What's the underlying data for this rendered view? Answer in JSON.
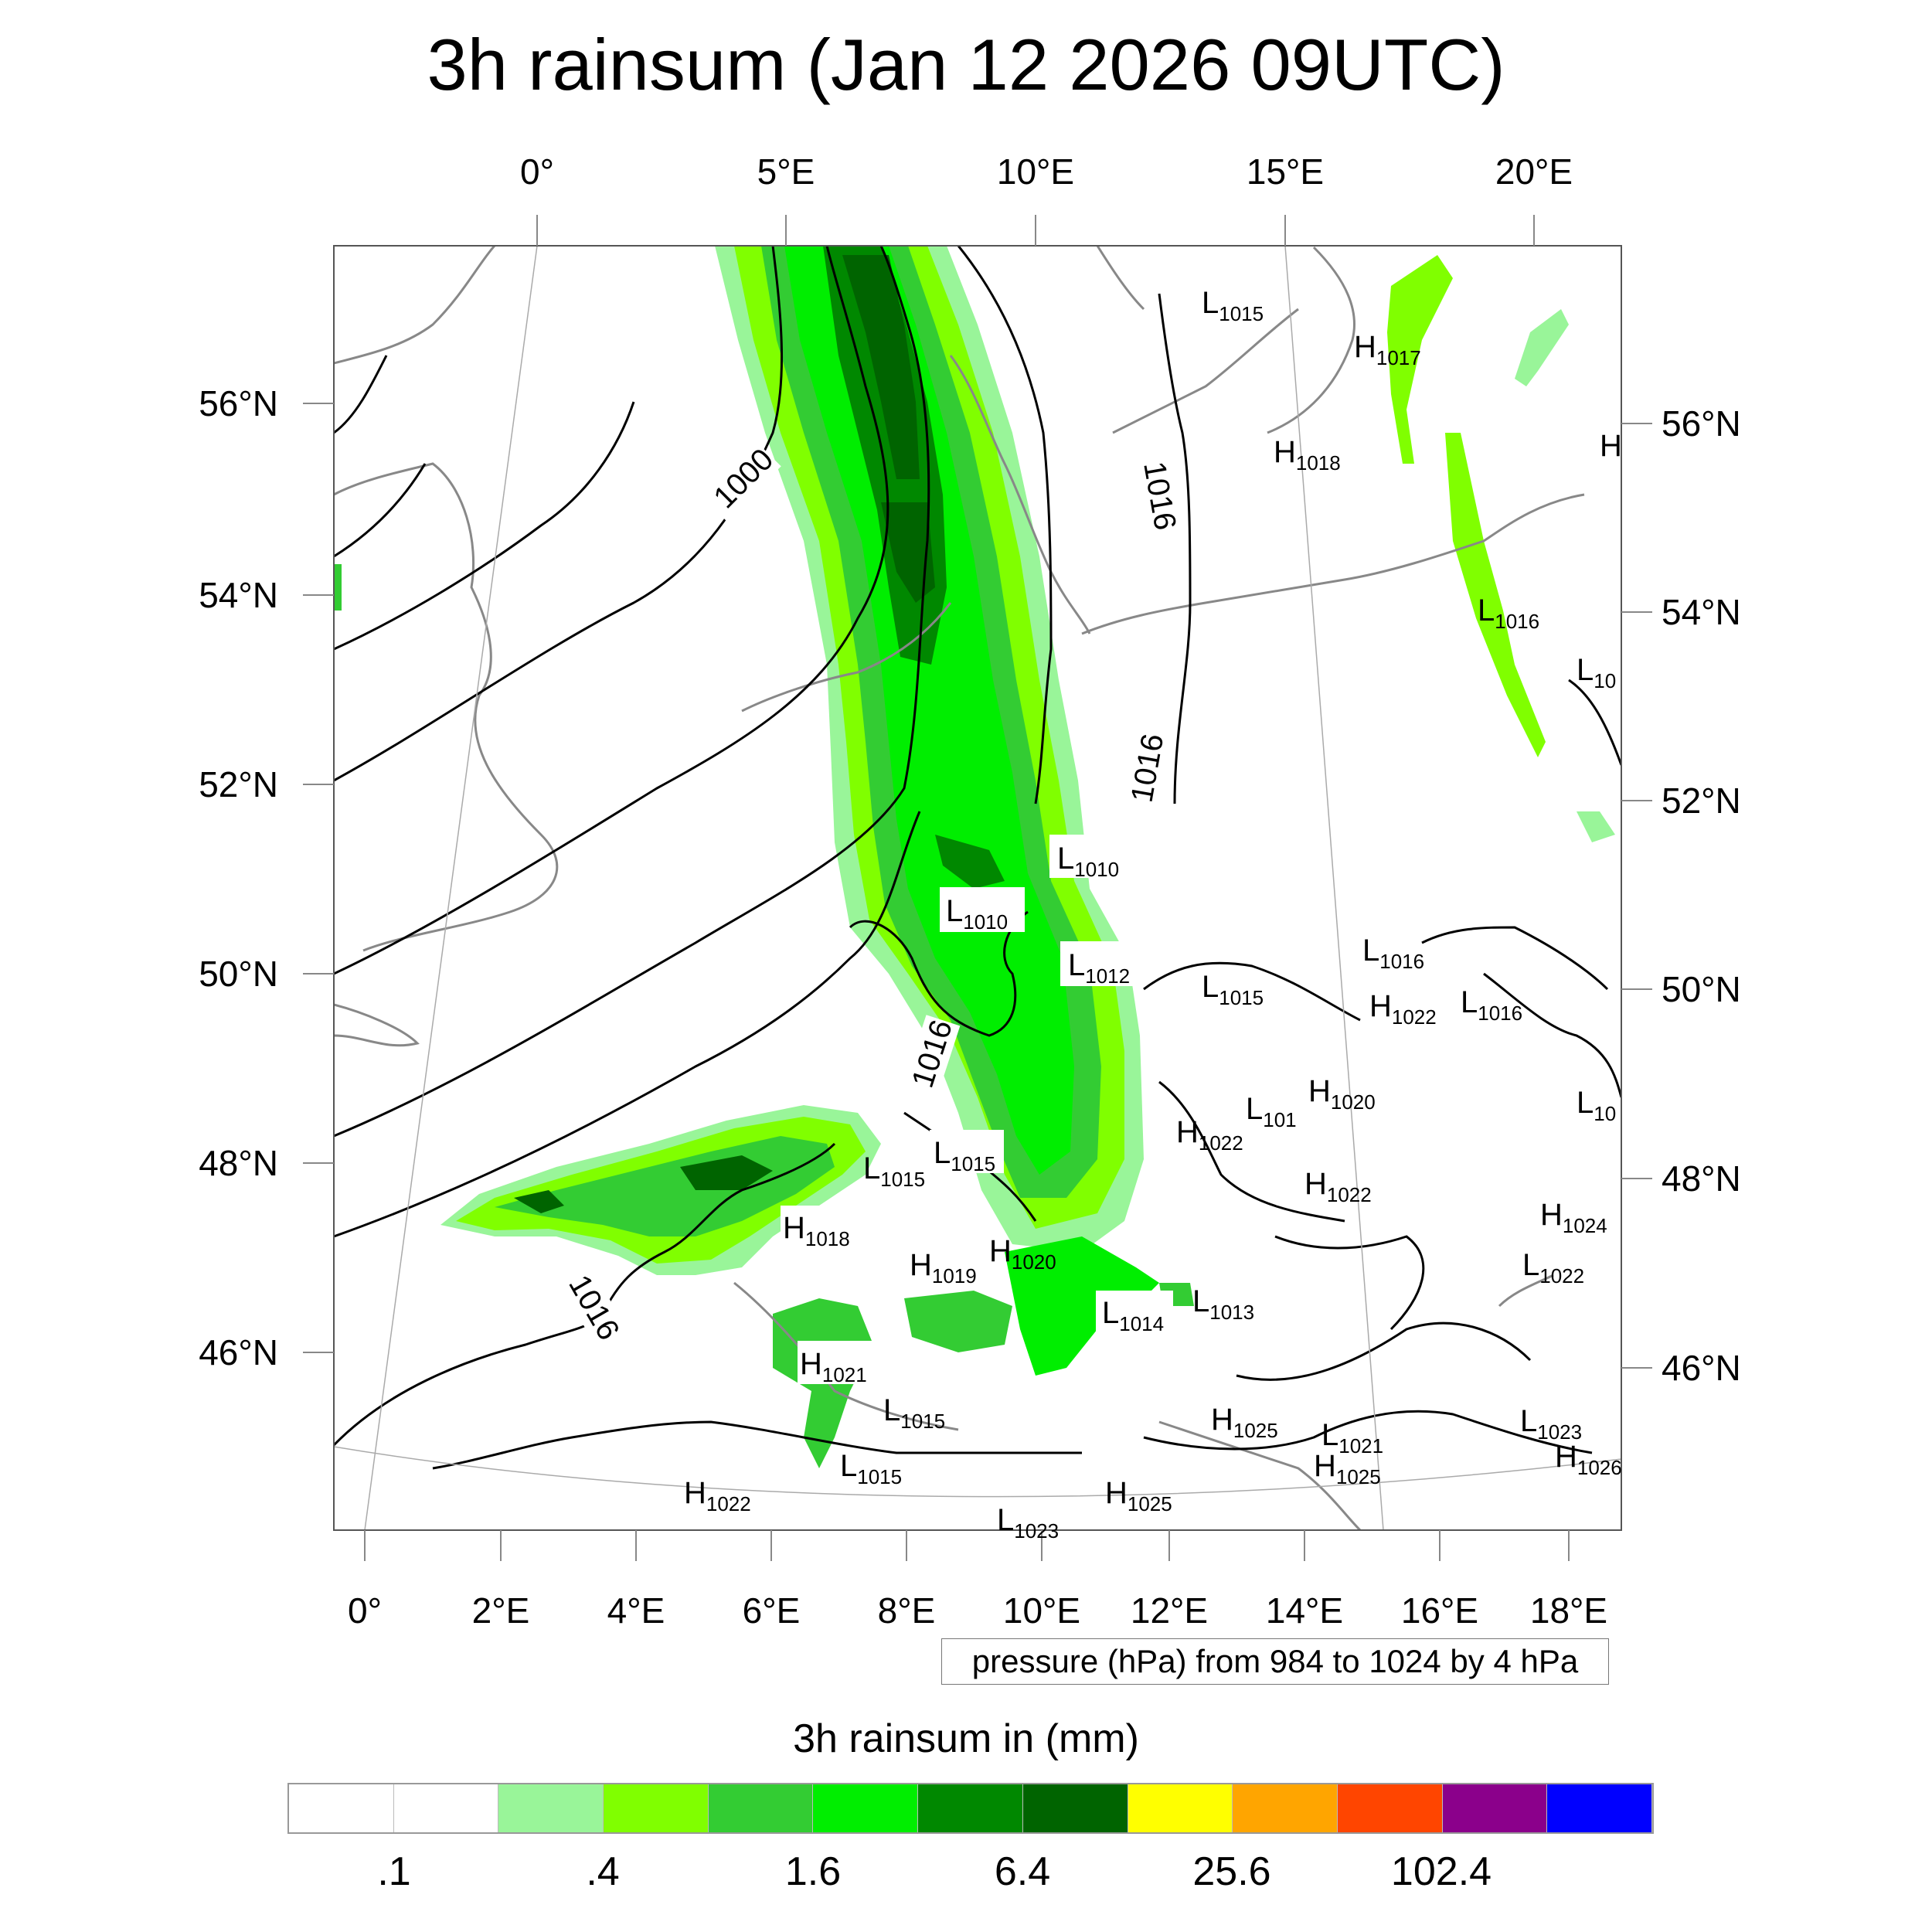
{
  "title": "3h rainsum (Jan 12 2026 09UTC)",
  "axes": {
    "top_lon_labels": [
      "0°",
      "5°E",
      "10°E",
      "15°E",
      "20°E"
    ],
    "bottom_lon_labels": [
      "0°",
      "2°E",
      "4°E",
      "6°E",
      "8°E",
      "10°E",
      "12°E",
      "14°E",
      "16°E",
      "18°E"
    ],
    "left_lat_labels": [
      "56°N",
      "54°N",
      "52°N",
      "50°N",
      "48°N",
      "46°N"
    ],
    "right_lat_labels": [
      "56°N",
      "54°N",
      "52°N",
      "50°N",
      "48°N",
      "46°N"
    ]
  },
  "isobar_labels": [
    "1000",
    "1016",
    "1016",
    "1016",
    "1016"
  ],
  "pressure_centers": [
    {
      "type": "L",
      "value": "1015"
    },
    {
      "type": "H",
      "value": "1017"
    },
    {
      "type": "H",
      "value": "1018"
    },
    {
      "type": "L",
      "value": "1016"
    },
    {
      "type": "L",
      "value": "10"
    },
    {
      "type": "L",
      "value": "1010"
    },
    {
      "type": "L",
      "value": "1010"
    },
    {
      "type": "L",
      "value": "1012"
    },
    {
      "type": "L",
      "value": "1015"
    },
    {
      "type": "L",
      "value": "1016"
    },
    {
      "type": "H",
      "value": "1022"
    },
    {
      "type": "L",
      "value": "1016"
    },
    {
      "type": "L",
      "value": "10"
    },
    {
      "type": "H",
      "value": "1020"
    },
    {
      "type": "L",
      "value": "101"
    },
    {
      "type": "H",
      "value": "1022"
    },
    {
      "type": "H",
      "value": "1022"
    },
    {
      "type": "L",
      "value": "1015"
    },
    {
      "type": "L",
      "value": "1015"
    },
    {
      "type": "H",
      "value": "1018"
    },
    {
      "type": "H",
      "value": "1019"
    },
    {
      "type": "H",
      "value": "1020"
    },
    {
      "type": "L",
      "value": "1014"
    },
    {
      "type": "L",
      "value": "1013"
    },
    {
      "type": "H",
      "value": "1024"
    },
    {
      "type": "L",
      "value": "1022"
    },
    {
      "type": "H",
      "value": "1021"
    },
    {
      "type": "L",
      "value": "1015"
    },
    {
      "type": "H",
      "value": "1025"
    },
    {
      "type": "L",
      "value": "1021"
    },
    {
      "type": "H",
      "value": "1025"
    },
    {
      "type": "L",
      "value": "1023"
    },
    {
      "type": "H",
      "value": "1026"
    },
    {
      "type": "L",
      "value": "1015"
    },
    {
      "type": "H",
      "value": "1022"
    },
    {
      "type": "L",
      "value": "1023"
    },
    {
      "type": "H",
      "value": "1025"
    },
    {
      "type": "H",
      "value": ""
    }
  ],
  "contour_note": "pressure (hPa) from 984 to 1024 by 4 hPa",
  "colorbar": {
    "title": "3h rainsum in (mm)",
    "labels": [
      ".1",
      ".4",
      "1.6",
      "6.4",
      "25.6",
      "102.4"
    ],
    "colors": [
      "#ffffff",
      "#ffffff",
      "#99f599",
      "#80ff00",
      "#33cc33",
      "#00ee00",
      "#008800",
      "#006400",
      "#ffff00",
      "#ffa500",
      "#ff4500",
      "#8b008b",
      "#0000ff"
    ]
  },
  "rain_colors": {
    "light": "#99f599",
    "lime": "#80ff00",
    "medium": "#33cc33",
    "bright": "#00ee00",
    "dark": "#008800",
    "darker": "#006400"
  }
}
